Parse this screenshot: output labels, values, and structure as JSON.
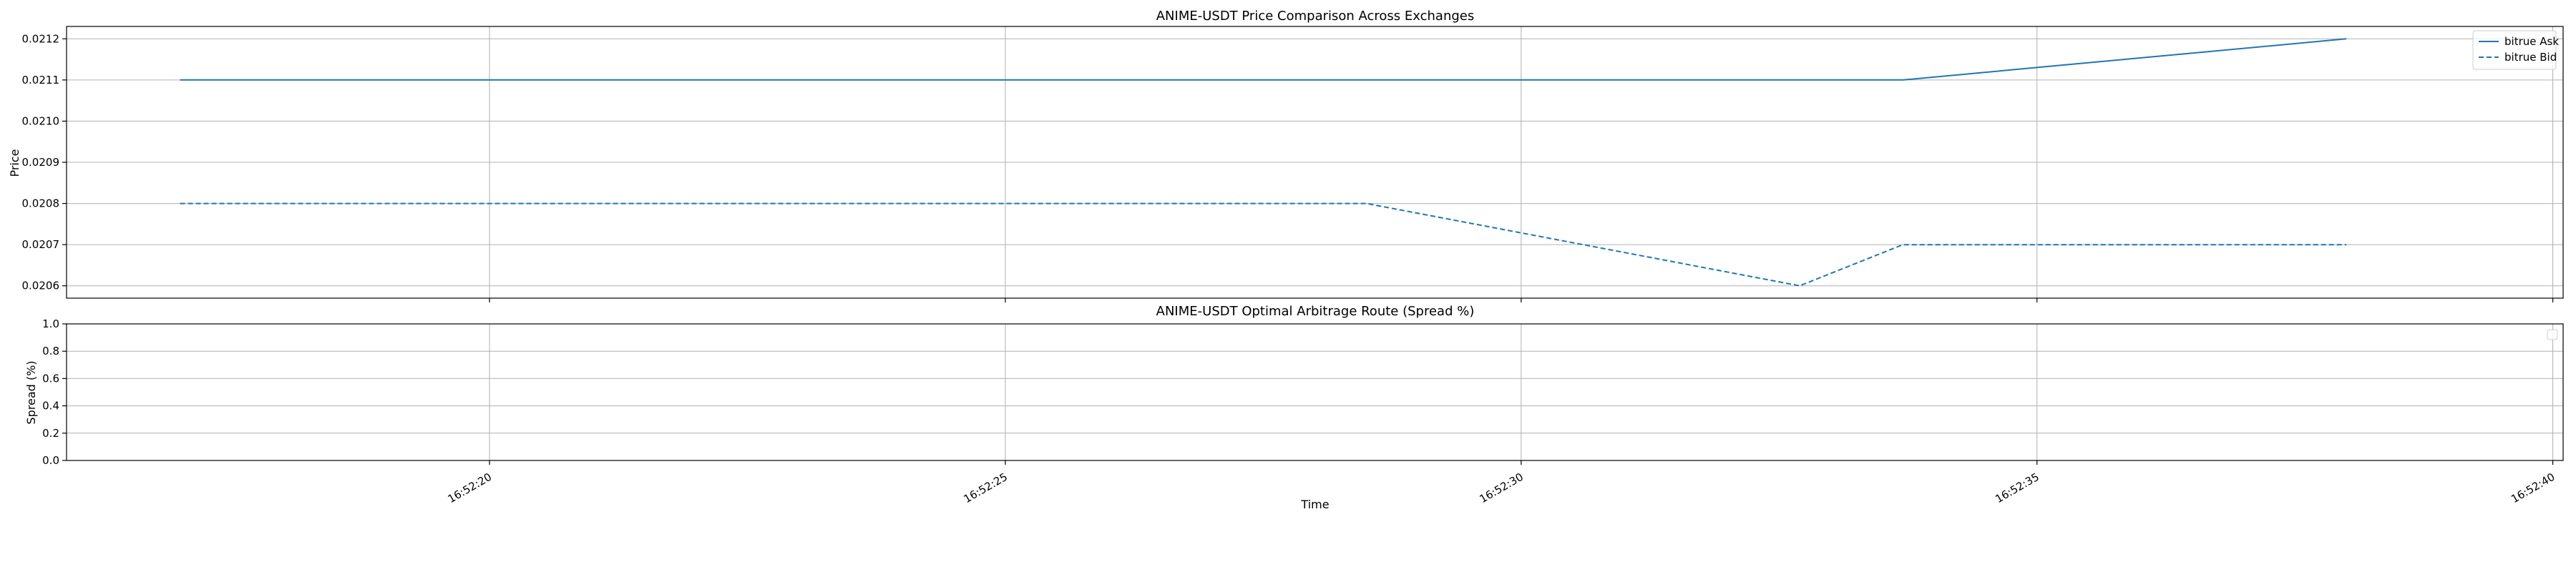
{
  "colors": {
    "series": "#1f77b4",
    "grid": "#b0b0b0",
    "axes": "#000000",
    "background": "#ffffff"
  },
  "chart_data": [
    {
      "type": "line",
      "title": "ANIME-USDT Price Comparison Across Exchanges",
      "xlabel": "",
      "ylabel": "Price",
      "x_range": [
        "16:52:15.9",
        "16:52:40.1"
      ],
      "ylim": [
        0.02057,
        0.02123
      ],
      "yticks": [
        0.0206,
        0.0207,
        0.0208,
        0.0209,
        0.021,
        0.0211,
        0.0212
      ],
      "ytick_labels": [
        "0.0206",
        "0.0207",
        "0.0208",
        "0.0209",
        "0.0210",
        "0.0211",
        "0.0212"
      ],
      "xticks": [
        "16:52:20",
        "16:52:25",
        "16:52:30",
        "16:52:35",
        "16:52:40"
      ],
      "grid": true,
      "legend": "top-right",
      "series": [
        {
          "name": "bitrue Ask",
          "style": "solid",
          "points": [
            {
              "x": "16:52:17.0",
              "y": 0.0211
            },
            {
              "x": "16:52:21.2",
              "y": 0.0211
            },
            {
              "x": "16:52:25.4",
              "y": 0.0211
            },
            {
              "x": "16:52:29.6",
              "y": 0.0211
            },
            {
              "x": "16:52:33.7",
              "y": 0.0211
            },
            {
              "x": "16:52:38.0",
              "y": 0.0212
            }
          ]
        },
        {
          "name": "bitrue Bid",
          "style": "dashed",
          "points": [
            {
              "x": "16:52:17.0",
              "y": 0.0208
            },
            {
              "x": "16:52:21.2",
              "y": 0.0208
            },
            {
              "x": "16:52:25.4",
              "y": 0.0208
            },
            {
              "x": "16:52:28.5",
              "y": 0.0208
            },
            {
              "x": "16:52:32.7",
              "y": 0.0206
            },
            {
              "x": "16:52:33.7",
              "y": 0.0207
            },
            {
              "x": "16:52:38.0",
              "y": 0.0207
            }
          ]
        }
      ]
    },
    {
      "type": "line",
      "title": "ANIME-USDT Optimal Arbitrage Route (Spread %)",
      "xlabel": "Time",
      "ylabel": "Spread (%)",
      "x_range": [
        "16:52:15.9",
        "16:52:40.1"
      ],
      "ylim": [
        0,
        1
      ],
      "yticks": [
        0,
        0.2,
        0.4,
        0.6,
        0.8,
        1.0
      ],
      "ytick_labels": [
        "0.0",
        "0.2",
        "0.4",
        "0.6",
        "0.8",
        "1.0"
      ],
      "xticks": [
        "16:52:20",
        "16:52:25",
        "16:52:30",
        "16:52:35",
        "16:52:40"
      ],
      "grid": true,
      "legend": "top-right",
      "series": []
    }
  ]
}
